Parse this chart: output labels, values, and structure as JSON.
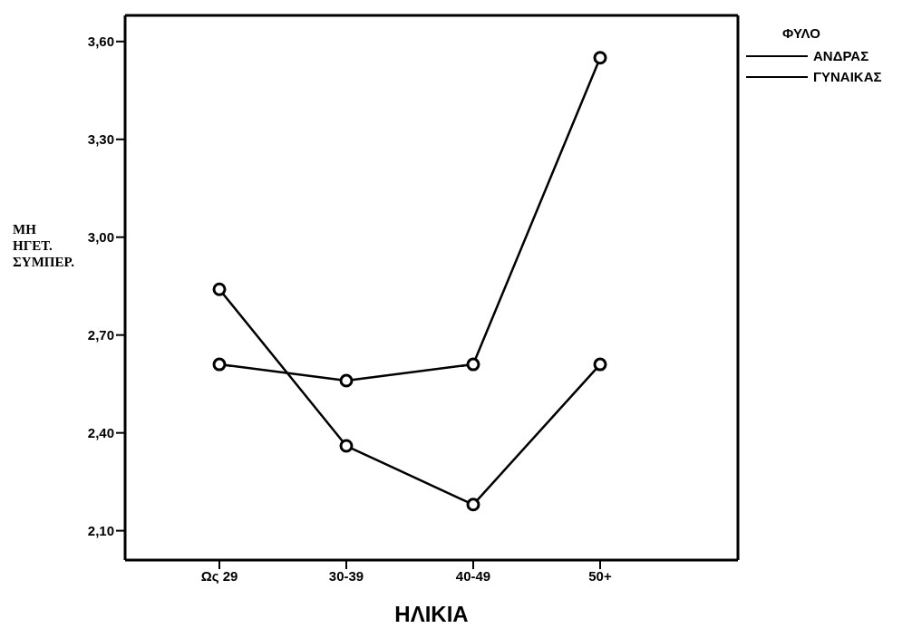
{
  "chart_data": {
    "type": "line",
    "xlabel": "ΗΛΙΚΙΑ",
    "ylabel": "ΜΗ ΗΓΕΤ. ΣΥΜΠΕΡ.",
    "legend_title": "ΦΥΛΟ",
    "categories": [
      "Ως 29",
      "30-39",
      "40-49",
      "50+"
    ],
    "series": [
      {
        "name": "ΑΝΔΡΑΣ",
        "color": "#000000",
        "values": [
          2.61,
          2.56,
          2.61,
          3.55
        ]
      },
      {
        "name": "ΓΥΝΑΙΚΑΣ",
        "color": "#000000",
        "values": [
          2.84,
          2.36,
          2.18,
          2.61
        ]
      }
    ],
    "ylim": [
      2.01,
      3.68
    ],
    "yticks": [
      {
        "value": 2.1,
        "label": "2,10"
      },
      {
        "value": 2.4,
        "label": "2,40"
      },
      {
        "value": 2.7,
        "label": "2,70"
      },
      {
        "value": 3.0,
        "label": "3,00"
      },
      {
        "value": 3.3,
        "label": "3,30"
      },
      {
        "value": 3.6,
        "label": "3,60"
      }
    ],
    "legend": "top right",
    "marker": "circle",
    "line_style": "solid"
  }
}
